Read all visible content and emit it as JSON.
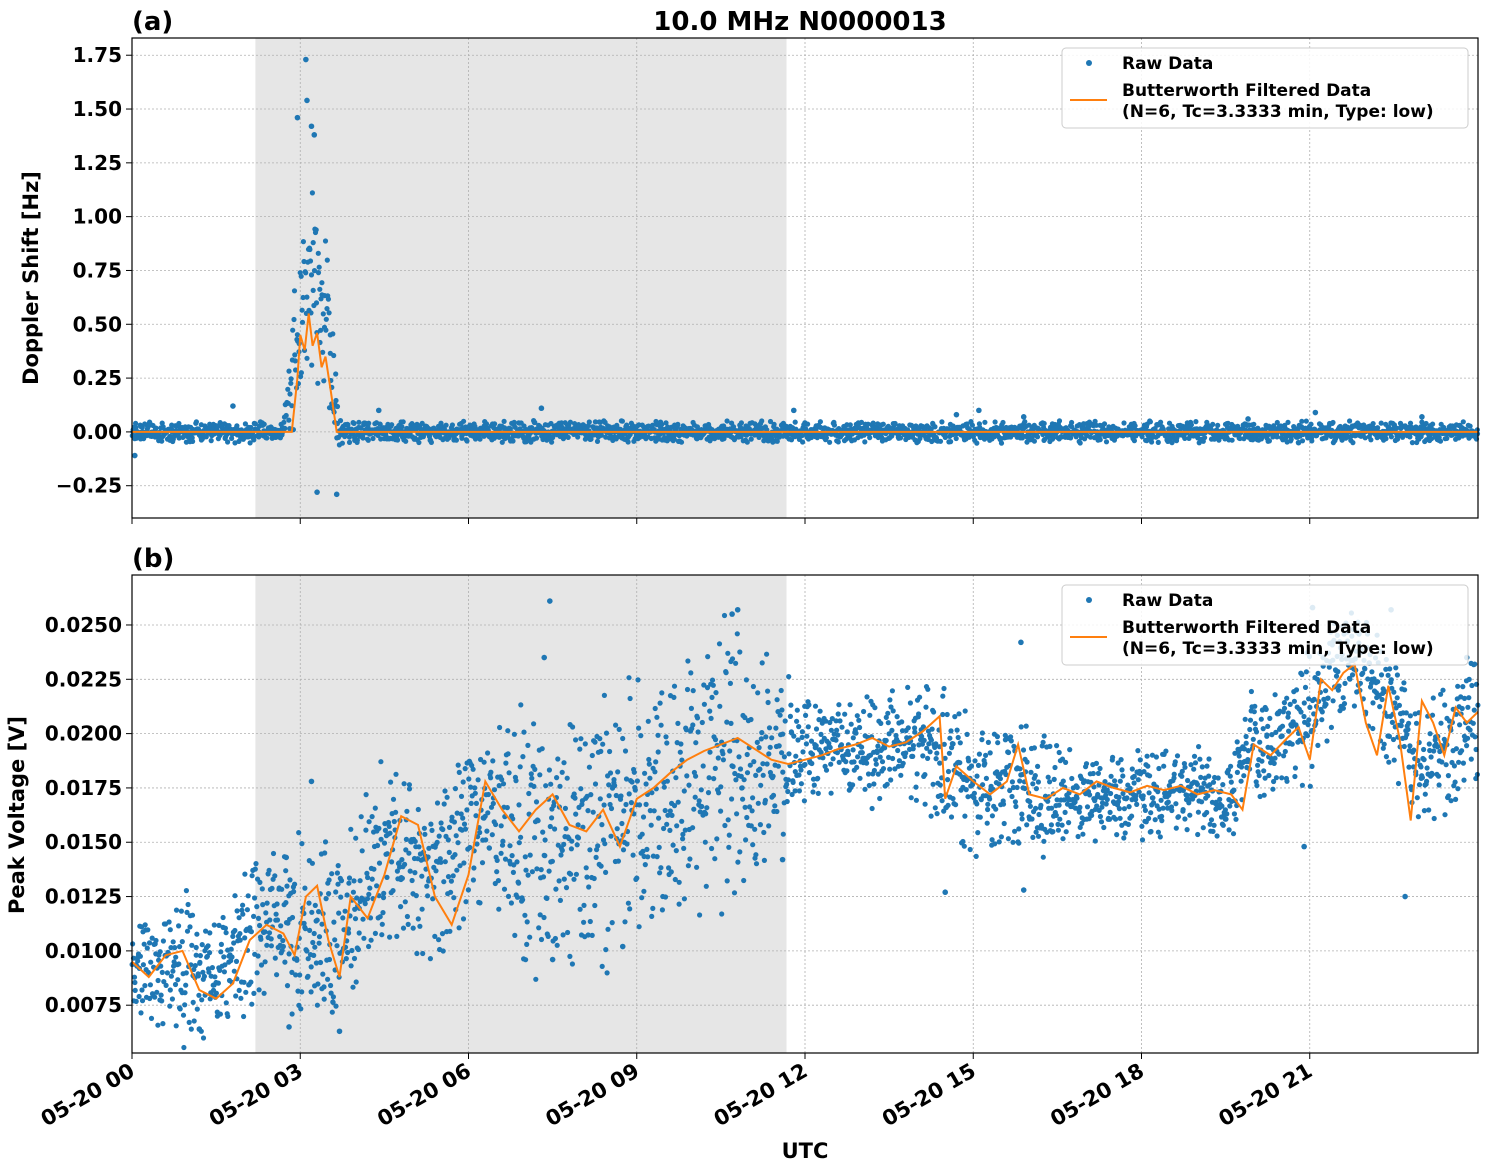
{
  "figure": {
    "title": "10.0 MHz N0000013",
    "xlabel": "UTC",
    "x_ticks": [
      "05-20 00",
      "05-20 03",
      "05-20 06",
      "05-20 09",
      "05-20 12",
      "05-20 15",
      "05-20 18",
      "05-20 21"
    ],
    "colors": {
      "raw": "#1f77b4",
      "filtered": "#ff7f0e",
      "shade": "#e6e6e6",
      "grid": "#b0b0b0"
    }
  },
  "chart_data": [
    {
      "type": "scatter",
      "panel_label": "(a)",
      "ylabel": "Doppler Shift [Hz]",
      "xlim_hours": [
        0,
        24
      ],
      "ylim": [
        -0.4,
        1.83
      ],
      "y_ticks": [
        -0.25,
        0.0,
        0.25,
        0.5,
        0.75,
        1.0,
        1.25,
        1.5,
        1.75
      ],
      "y_tick_labels": [
        "−0.25",
        "0.00",
        "0.25",
        "0.50",
        "0.75",
        "1.00",
        "1.25",
        "1.50",
        "1.75"
      ],
      "grid": true,
      "legend_position": "top-right",
      "shaded_region_hours": [
        2.2,
        11.67
      ],
      "series": [
        {
          "name": "Raw Data",
          "style": "points",
          "envelope": {
            "x_hours": [
              0,
              2.7,
              2.9,
              3.0,
              3.15,
              3.3,
              3.5,
              3.7,
              3.8,
              24
            ],
            "low": [
              -0.03,
              -0.03,
              0.1,
              0.25,
              0.35,
              0.3,
              0.2,
              -0.04,
              -0.03,
              -0.03
            ],
            "high": [
              0.03,
              0.03,
              0.55,
              0.8,
              1.0,
              0.9,
              0.7,
              0.04,
              0.03,
              0.03
            ]
          },
          "outliers": [
            {
              "x_hours": 0.05,
              "y": -0.11
            },
            {
              "x_hours": 1.8,
              "y": 0.12
            },
            {
              "x_hours": 2.95,
              "y": 1.46
            },
            {
              "x_hours": 3.1,
              "y": 1.73
            },
            {
              "x_hours": 3.12,
              "y": 1.54
            },
            {
              "x_hours": 3.2,
              "y": 1.42
            },
            {
              "x_hours": 3.25,
              "y": 1.38
            },
            {
              "x_hours": 3.3,
              "y": -0.28
            },
            {
              "x_hours": 3.65,
              "y": -0.29
            },
            {
              "x_hours": 4.4,
              "y": 0.1
            },
            {
              "x_hours": 7.3,
              "y": 0.11
            },
            {
              "x_hours": 11.8,
              "y": 0.1
            },
            {
              "x_hours": 15.1,
              "y": 0.1
            },
            {
              "x_hours": 14.7,
              "y": 0.08
            },
            {
              "x_hours": 15.9,
              "y": 0.07
            },
            {
              "x_hours": 19.9,
              "y": 0.06
            },
            {
              "x_hours": 21.1,
              "y": 0.09
            },
            {
              "x_hours": 20.8,
              "y": -0.05
            },
            {
              "x_hours": 23.0,
              "y": 0.07
            }
          ]
        },
        {
          "name": "Butterworth Filtered Data\n(N=6, Tc=3.3333 min, Type: low)",
          "style": "line",
          "x_hours": [
            0,
            2.85,
            2.95,
            3.0,
            3.08,
            3.15,
            3.22,
            3.3,
            3.38,
            3.45,
            3.55,
            3.65,
            24
          ],
          "y": [
            0.0,
            0.0,
            0.25,
            0.45,
            0.38,
            0.55,
            0.4,
            0.46,
            0.3,
            0.35,
            0.18,
            0.0,
            0.0
          ]
        }
      ]
    },
    {
      "type": "scatter",
      "panel_label": "(b)",
      "ylabel": "Peak Voltage [V]",
      "xlim_hours": [
        0,
        24
      ],
      "ylim": [
        0.0053,
        0.0273
      ],
      "y_ticks": [
        0.0075,
        0.01,
        0.0125,
        0.015,
        0.0175,
        0.02,
        0.0225,
        0.025
      ],
      "y_tick_labels": [
        "0.0075",
        "0.0100",
        "0.0125",
        "0.0150",
        "0.0175",
        "0.0200",
        "0.0225",
        "0.0250"
      ],
      "grid": true,
      "legend_position": "top-right",
      "shaded_region_hours": [
        2.2,
        11.67
      ],
      "series": [
        {
          "name": "Raw Data",
          "style": "points",
          "envelope": {
            "x_hours": [
              0,
              0.5,
              1.0,
              1.5,
              2.0,
              2.5,
              3.0,
              3.5,
              4.0,
              4.5,
              5.0,
              5.5,
              6.0,
              6.5,
              7.0,
              7.5,
              8.0,
              8.5,
              9.0,
              9.5,
              10.0,
              10.5,
              11.0,
              11.5,
              12.0,
              12.5,
              13.0,
              13.5,
              14.0,
              14.5,
              15.0,
              15.5,
              16.0,
              16.5,
              17.0,
              17.5,
              18.0,
              18.5,
              19.0,
              19.5,
              20.0,
              20.5,
              21.0,
              21.5,
              22.0,
              22.5,
              23.0,
              23.5,
              24.0
            ],
            "low": [
              0.008,
              0.0075,
              0.0068,
              0.0072,
              0.0085,
              0.009,
              0.0085,
              0.0075,
              0.0095,
              0.0125,
              0.0115,
              0.011,
              0.0135,
              0.0125,
              0.011,
              0.0115,
              0.0125,
              0.0115,
              0.013,
              0.0135,
              0.014,
              0.0135,
              0.0145,
              0.016,
              0.0172,
              0.018,
              0.0175,
              0.018,
              0.0178,
              0.0165,
              0.0155,
              0.016,
              0.0155,
              0.0155,
              0.016,
              0.016,
              0.016,
              0.016,
              0.016,
              0.0155,
              0.018,
              0.0185,
              0.019,
              0.0215,
              0.0215,
              0.019,
              0.0165,
              0.0175,
              0.019
            ],
            "high": [
              0.0105,
              0.011,
              0.0115,
              0.0105,
              0.0125,
              0.0135,
              0.014,
              0.0135,
              0.0145,
              0.0175,
              0.0165,
              0.016,
              0.019,
              0.0185,
              0.0195,
              0.019,
              0.0195,
              0.0195,
              0.02,
              0.0205,
              0.0215,
              0.0225,
              0.022,
              0.0215,
              0.021,
              0.0205,
              0.0205,
              0.021,
              0.021,
              0.021,
              0.0195,
              0.0195,
              0.0195,
              0.0185,
              0.0185,
              0.0185,
              0.0185,
              0.0185,
              0.0185,
              0.0175,
              0.0215,
              0.0215,
              0.023,
              0.0245,
              0.0245,
              0.0225,
              0.0205,
              0.0215,
              0.023
            ]
          },
          "outliers": [
            {
              "x_hours": 1.2,
              "y": 0.0064
            },
            {
              "x_hours": 2.8,
              "y": 0.0065
            },
            {
              "x_hours": 3.7,
              "y": 0.0063
            },
            {
              "x_hours": 2.75,
              "y": 0.0143
            },
            {
              "x_hours": 3.2,
              "y": 0.0178
            },
            {
              "x_hours": 7.45,
              "y": 0.0261
            },
            {
              "x_hours": 7.35,
              "y": 0.0235
            },
            {
              "x_hours": 7.5,
              "y": 0.0096
            },
            {
              "x_hours": 8.75,
              "y": 0.0102
            },
            {
              "x_hours": 10.8,
              "y": 0.0257
            },
            {
              "x_hours": 10.7,
              "y": 0.0255
            },
            {
              "x_hours": 11.6,
              "y": 0.0142
            },
            {
              "x_hours": 14.5,
              "y": 0.0127
            },
            {
              "x_hours": 15.85,
              "y": 0.0242
            },
            {
              "x_hours": 15.9,
              "y": 0.0128
            },
            {
              "x_hours": 20.9,
              "y": 0.0148
            },
            {
              "x_hours": 21.05,
              "y": 0.0258
            },
            {
              "x_hours": 22.45,
              "y": 0.0257
            },
            {
              "x_hours": 22.7,
              "y": 0.0125
            },
            {
              "x_hours": 23.8,
              "y": 0.0235
            }
          ]
        },
        {
          "name": "Butterworth Filtered Data\n(N=6, Tc=3.3333 min, Type: low)",
          "style": "line",
          "x_hours": [
            0,
            0.3,
            0.6,
            0.9,
            1.2,
            1.5,
            1.8,
            2.1,
            2.4,
            2.7,
            2.9,
            3.1,
            3.3,
            3.5,
            3.7,
            3.9,
            4.2,
            4.5,
            4.8,
            5.1,
            5.4,
            5.7,
            6.0,
            6.3,
            6.6,
            6.9,
            7.2,
            7.5,
            7.8,
            8.1,
            8.4,
            8.7,
            9.0,
            9.3,
            9.6,
            9.9,
            10.2,
            10.5,
            10.8,
            11.1,
            11.4,
            11.7,
            12.0,
            12.3,
            12.6,
            12.9,
            13.2,
            13.5,
            13.8,
            14.1,
            14.4,
            14.5,
            14.7,
            15.0,
            15.3,
            15.6,
            15.8,
            16.0,
            16.3,
            16.6,
            16.9,
            17.2,
            17.5,
            17.8,
            18.1,
            18.4,
            18.7,
            19.0,
            19.3,
            19.6,
            19.8,
            20.0,
            20.3,
            20.6,
            20.8,
            21.0,
            21.2,
            21.4,
            21.6,
            21.8,
            22.0,
            22.2,
            22.4,
            22.6,
            22.8,
            23.0,
            23.2,
            23.4,
            23.6,
            23.8,
            24.0
          ],
          "y": [
            0.0095,
            0.0088,
            0.0098,
            0.01,
            0.0082,
            0.0078,
            0.0085,
            0.0105,
            0.0112,
            0.0108,
            0.0098,
            0.0125,
            0.013,
            0.0105,
            0.0088,
            0.0125,
            0.0115,
            0.0135,
            0.0162,
            0.0158,
            0.0125,
            0.0112,
            0.0135,
            0.0178,
            0.0165,
            0.0155,
            0.0165,
            0.0172,
            0.0158,
            0.0155,
            0.0165,
            0.0148,
            0.017,
            0.0175,
            0.0182,
            0.0188,
            0.0192,
            0.0195,
            0.0198,
            0.0193,
            0.0188,
            0.0186,
            0.0188,
            0.019,
            0.0193,
            0.0195,
            0.0198,
            0.0194,
            0.0196,
            0.0201,
            0.0208,
            0.017,
            0.0185,
            0.0178,
            0.0172,
            0.0178,
            0.0195,
            0.0172,
            0.017,
            0.0175,
            0.0172,
            0.0178,
            0.0175,
            0.0173,
            0.0176,
            0.0174,
            0.0176,
            0.0172,
            0.0174,
            0.0172,
            0.0165,
            0.0195,
            0.019,
            0.0198,
            0.0203,
            0.0188,
            0.0225,
            0.022,
            0.0228,
            0.0232,
            0.0205,
            0.019,
            0.0222,
            0.0198,
            0.016,
            0.0215,
            0.0205,
            0.019,
            0.0212,
            0.0205,
            0.021
          ]
        }
      ]
    }
  ]
}
